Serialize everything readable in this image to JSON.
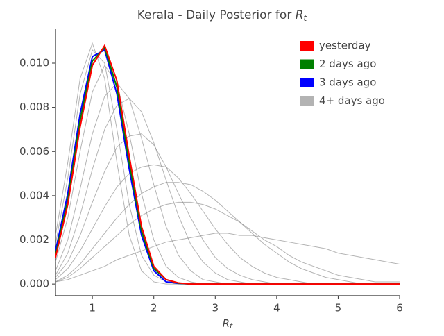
{
  "chart_data": {
    "type": "line",
    "title": "Kerala - Daily Posterior for ",
    "title_symbol": "R",
    "title_subscript": "t",
    "xlabel": "R",
    "xlabel_subscript": "t",
    "x": [
      0.4,
      0.6,
      0.8,
      1.0,
      1.2,
      1.4,
      1.6,
      1.8,
      2.0,
      2.2,
      2.4,
      2.6,
      2.8,
      3.0,
      3.2,
      3.4,
      3.6,
      3.8,
      4.0,
      4.2,
      4.4,
      4.6,
      4.8,
      5.0,
      5.2,
      5.4,
      5.6,
      5.8,
      6.0
    ],
    "xlim": [
      0.4,
      6
    ],
    "xticks": [
      1,
      2,
      3,
      4,
      5,
      6
    ],
    "ylim": [
      -0.00053,
      0.01154
    ],
    "yticks": [
      {
        "value": 0,
        "label": "0.000"
      },
      {
        "value": 0.002,
        "label": "0.002"
      },
      {
        "value": 0.004,
        "label": "0.004"
      },
      {
        "value": 0.006,
        "label": "0.006"
      },
      {
        "value": 0.008,
        "label": "0.008"
      },
      {
        "value": 0.01,
        "label": "0.010"
      }
    ],
    "legend": "upper right",
    "series": [
      {
        "name": "yesterday",
        "color": "#ff0000",
        "values": [
          0.0012,
          0.0036,
          0.0071,
          0.0099,
          0.0108,
          0.0092,
          0.0058,
          0.0026,
          0.0008,
          0.0002,
          5e-05,
          0,
          0,
          0,
          0,
          0,
          0,
          0,
          0,
          0,
          0,
          0,
          0,
          0,
          0,
          0,
          0,
          0,
          0
        ]
      },
      {
        "name": "2 days ago",
        "color": "#008000",
        "values": [
          0.0013,
          0.0038,
          0.0074,
          0.0101,
          0.0107,
          0.0089,
          0.0055,
          0.0024,
          0.0007,
          0.0002,
          4e-05,
          0,
          0,
          0,
          0,
          0,
          0,
          0,
          0,
          0,
          0,
          0,
          0,
          0,
          0,
          0,
          0,
          0,
          0
        ]
      },
      {
        "name": "3 days ago",
        "color": "#0000ff",
        "values": [
          0.0015,
          0.0041,
          0.0077,
          0.0103,
          0.0106,
          0.0086,
          0.0052,
          0.0022,
          0.0006,
          0.0001,
          3e-05,
          0,
          0,
          0,
          0,
          0,
          0,
          0,
          0,
          0,
          0,
          0,
          0,
          0,
          0,
          0,
          0,
          0,
          0
        ]
      },
      {
        "name": "4+ days ago",
        "color": "#808080",
        "curves": [
          [
            0.0022,
            0.0055,
            0.0093,
            0.0109,
            0.0093,
            0.0055,
            0.0022,
            0.0006,
            0.0001,
            0,
            0,
            0,
            0,
            0,
            0,
            0,
            0,
            0,
            0,
            0,
            0,
            0,
            0,
            0,
            0,
            0,
            0,
            0,
            0
          ],
          [
            0.0018,
            0.0048,
            0.0086,
            0.0106,
            0.01,
            0.007,
            0.0036,
            0.0013,
            0.0004,
            0.0001,
            0,
            0,
            0,
            0,
            0,
            0,
            0,
            0,
            0,
            0,
            0,
            0,
            0,
            0,
            0,
            0,
            0,
            0,
            0
          ],
          [
            0.001,
            0.003,
            0.006,
            0.0087,
            0.0099,
            0.0091,
            0.0068,
            0.0041,
            0.002,
            0.0008,
            0.0003,
            0.0001,
            0,
            0,
            0,
            0,
            0,
            0,
            0,
            0,
            0,
            0,
            0,
            0,
            0,
            0,
            0,
            0,
            0
          ],
          [
            0.0006,
            0.002,
            0.0043,
            0.0068,
            0.0085,
            0.0091,
            0.0084,
            0.0066,
            0.0045,
            0.0026,
            0.0013,
            0.0006,
            0.0002,
            0.0001,
            0,
            0,
            0,
            0,
            0,
            0,
            0,
            0,
            0,
            0,
            0,
            0,
            0,
            0,
            0
          ],
          [
            0.0004,
            0.0014,
            0.0031,
            0.0052,
            0.007,
            0.0081,
            0.0084,
            0.0078,
            0.0064,
            0.0047,
            0.0031,
            0.0018,
            0.001,
            0.0005,
            0.0002,
            0.0001,
            0,
            0,
            0,
            0,
            0,
            0,
            0,
            0,
            0,
            0,
            0,
            0,
            0
          ],
          [
            0.0003,
            0.001,
            0.0022,
            0.0037,
            0.0051,
            0.0062,
            0.0067,
            0.0068,
            0.0063,
            0.0053,
            0.0041,
            0.003,
            0.002,
            0.0012,
            0.0007,
            0.0004,
            0.0002,
            0.0001,
            0,
            0,
            0,
            0,
            0,
            0,
            0,
            0,
            0,
            0,
            0
          ],
          [
            0.0002,
            0.0007,
            0.0015,
            0.0025,
            0.0035,
            0.0044,
            0.005,
            0.0053,
            0.0054,
            0.0053,
            0.0048,
            0.0041,
            0.0033,
            0.0025,
            0.0018,
            0.0012,
            0.0008,
            0.0005,
            0.0003,
            0.0002,
            0.0001,
            0,
            0,
            0,
            0,
            0,
            0,
            0,
            0
          ],
          [
            0.0001,
            0.0004,
            0.0009,
            0.0016,
            0.0023,
            0.003,
            0.0036,
            0.0041,
            0.0044,
            0.0046,
            0.0046,
            0.0045,
            0.0042,
            0.0038,
            0.0033,
            0.0028,
            0.0023,
            0.0018,
            0.0014,
            0.001,
            0.0007,
            0.0005,
            0.0003,
            0.0002,
            0.0001,
            0,
            0,
            0,
            0
          ],
          [
            0.0001,
            0.0003,
            0.0007,
            0.0012,
            0.0017,
            0.0022,
            0.0027,
            0.0031,
            0.0034,
            0.0036,
            0.0037,
            0.0037,
            0.0036,
            0.0034,
            0.0031,
            0.0028,
            0.0024,
            0.002,
            0.0017,
            0.0013,
            0.001,
            0.0008,
            0.0006,
            0.0004,
            0.0003,
            0.0002,
            0.0001,
            0.0001,
            0.0001
          ],
          [
            0.0001,
            0.0002,
            0.0004,
            0.0006,
            0.0008,
            0.0011,
            0.0013,
            0.0015,
            0.0017,
            0.0019,
            0.002,
            0.0021,
            0.0022,
            0.0023,
            0.0023,
            0.0022,
            0.0022,
            0.0021,
            0.002,
            0.0019,
            0.0018,
            0.0017,
            0.0016,
            0.0014,
            0.0013,
            0.0012,
            0.0011,
            0.001,
            0.0009
          ]
        ]
      }
    ]
  }
}
